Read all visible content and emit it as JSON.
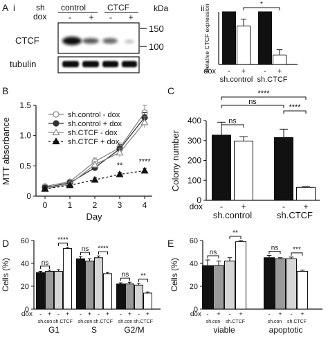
{
  "panels": {
    "A": {
      "label": "A",
      "sub_i": "i",
      "sub_ii": "ii",
      "header_sh": "sh",
      "header_dox": "dox",
      "group_control": "control",
      "group_ctcf": "CTCF",
      "dox_marks": [
        "-",
        "+",
        "-",
        "+"
      ],
      "kda": "kDa",
      "marker_150": "150",
      "marker_100": "100",
      "row_ctcf": "CTCF",
      "row_tubulin": "tubulin"
    },
    "B": {
      "label": "B"
    },
    "C": {
      "label": "C"
    },
    "D": {
      "label": "D"
    },
    "E": {
      "label": "E"
    }
  },
  "chart_data": [
    {
      "id": "Aii",
      "type": "bar",
      "ylabel": "Relative CTCF expression",
      "ylim": [
        0,
        1
      ],
      "categories": [
        "sh.control -",
        "sh.control +",
        "sh.CTCF -",
        "sh.CTCF +"
      ],
      "values": [
        1.0,
        0.73,
        1.0,
        0.18
      ],
      "errors": [
        0,
        0.13,
        0,
        0.1
      ],
      "fills": [
        "#111111",
        "#ffffff",
        "#111111",
        "#ffffff"
      ],
      "dox_label": "dox",
      "dox_marks": [
        "-",
        "+",
        "-",
        "+"
      ],
      "group_labels": [
        "sh.control",
        "sh.CTCF"
      ],
      "significance": [
        {
          "from": 1,
          "to": 3,
          "label": "*"
        }
      ]
    },
    {
      "id": "B",
      "type": "line",
      "xlabel": "Day",
      "ylabel": "MTT absorbance",
      "x": [
        0,
        1,
        2,
        3,
        4
      ],
      "xticks": [
        "0",
        "1",
        "2",
        "3",
        "4"
      ],
      "ylim": [
        0,
        1.5
      ],
      "yticks": [
        "0",
        "0.5",
        "1.0",
        "1.5"
      ],
      "series": [
        {
          "name": "sh.control - dox",
          "values": [
            0.16,
            0.24,
            0.57,
            0.8,
            1.38
          ],
          "errors": [
            0.02,
            0.03,
            0.06,
            0.08,
            0.12
          ],
          "marker": "circle-open",
          "dash": ""
        },
        {
          "name": "sh.control + dox",
          "values": [
            0.14,
            0.22,
            0.47,
            0.78,
            1.3
          ],
          "errors": [
            0.02,
            0.03,
            0.05,
            0.07,
            0.08
          ],
          "marker": "circle-filled",
          "dash": ""
        },
        {
          "name": "sh.CTCF - dox",
          "values": [
            0.12,
            0.2,
            0.52,
            0.72,
            1.22
          ],
          "errors": [
            0.02,
            0.03,
            0.05,
            0.07,
            0.09
          ],
          "marker": "triangle-open",
          "dash": ""
        },
        {
          "name": "sh.CTCF + dox",
          "values": [
            0.12,
            0.18,
            0.27,
            0.36,
            0.42
          ],
          "errors": [
            0.02,
            0.02,
            0.03,
            0.03,
            0.04
          ],
          "marker": "triangle-filled",
          "dash": "3,3"
        }
      ],
      "annotations": [
        {
          "x": 3,
          "y": 0.47,
          "label": "**"
        },
        {
          "x": 4,
          "y": 0.53,
          "label": "****"
        }
      ]
    },
    {
      "id": "C",
      "type": "bar",
      "ylabel": "Colony number",
      "ylim": [
        0,
        400
      ],
      "yticks": [
        "0",
        "100",
        "200",
        "300",
        "400"
      ],
      "categories": [
        "sh.control -",
        "sh.control +",
        "sh.CTCF -",
        "sh.CTCF +"
      ],
      "values": [
        327,
        297,
        315,
        65
      ],
      "errors": [
        65,
        22,
        42,
        4
      ],
      "fills": [
        "#111111",
        "#ffffff",
        "#111111",
        "#ffffff"
      ],
      "dox_label": "dox",
      "dox_marks": [
        "-",
        "+",
        "-",
        "+"
      ],
      "group_labels": [
        "sh.control",
        "sh.CTCF"
      ],
      "significance": [
        {
          "from": 0,
          "to": 1,
          "label": "ns"
        },
        {
          "from": 0,
          "to": 2,
          "label": "ns"
        },
        {
          "from": 0,
          "to": 3,
          "label": "****"
        },
        {
          "from": 2,
          "to": 3,
          "label": "****"
        }
      ]
    },
    {
      "id": "D",
      "type": "bar",
      "ylabel": "Cells (%)",
      "ylim": [
        0,
        60
      ],
      "yticks": [
        "0",
        "20",
        "40",
        "60"
      ],
      "series_names": [
        "sh.con -",
        "sh.con +",
        "sh.CTCF -",
        "sh.CTCF +"
      ],
      "fills": [
        "#111111",
        "#9a9a9a",
        "#d6d6d6",
        "#ffffff"
      ],
      "groups": [
        {
          "label": "G1",
          "values": [
            32,
            33,
            33,
            53
          ],
          "errors": [
            1,
            1,
            1.5,
            1
          ],
          "sig": [
            {
              "from": 0,
              "to": 1,
              "label": "ns"
            },
            {
              "from": 2,
              "to": 3,
              "label": "****"
            }
          ]
        },
        {
          "label": "S",
          "values": [
            44,
            42,
            45,
            31
          ],
          "errors": [
            2,
            2,
            1.5,
            1
          ],
          "sig": [
            {
              "from": 0,
              "to": 1,
              "label": "ns"
            },
            {
              "from": 2,
              "to": 3,
              "label": "****"
            }
          ]
        },
        {
          "label": "G2/M",
          "values": [
            22,
            22,
            21,
            14
          ],
          "errors": [
            1,
            1.5,
            1.5,
            1
          ],
          "sig": [
            {
              "from": 0,
              "to": 1,
              "label": "ns"
            },
            {
              "from": 2,
              "to": 3,
              "label": "**"
            }
          ]
        }
      ],
      "dox_label": "dox",
      "dox_marks": [
        "-",
        "+",
        "-",
        "+"
      ],
      "sub_labels": [
        "sh.con",
        "sh.CTCF"
      ]
    },
    {
      "id": "E",
      "type": "bar",
      "ylabel": "Cells (%)",
      "ylim": [
        0,
        60
      ],
      "yticks": [
        "0",
        "20",
        "40",
        "60"
      ],
      "series_names": [
        "sh.con -",
        "sh.con +",
        "sh.CTCF -",
        "sh.CTCF +"
      ],
      "fills": [
        "#111111",
        "#9a9a9a",
        "#d6d6d6",
        "#ffffff"
      ],
      "groups": [
        {
          "label": "viable",
          "values": [
            38,
            38,
            42,
            59
          ],
          "errors": [
            5,
            4,
            3,
            1
          ],
          "sig": [
            {
              "from": 0,
              "to": 1,
              "label": "ns"
            },
            {
              "from": 2,
              "to": 3,
              "label": "**"
            }
          ]
        },
        {
          "label": "apoptotic",
          "values": [
            45,
            44,
            44,
            33
          ],
          "errors": [
            2,
            1,
            1.5,
            1
          ],
          "sig": [
            {
              "from": 0,
              "to": 1,
              "label": "ns"
            },
            {
              "from": 2,
              "to": 3,
              "label": "***"
            }
          ]
        }
      ],
      "dox_label": "dox",
      "dox_marks": [
        "-",
        "+",
        "-",
        "+"
      ],
      "sub_labels": [
        "sh.con",
        "sh.CTCF"
      ]
    }
  ]
}
